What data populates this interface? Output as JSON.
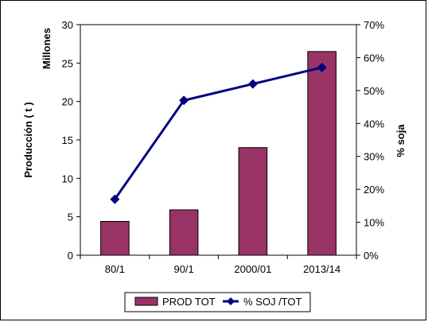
{
  "chart_data": {
    "type": "bar",
    "categories": [
      "80/1",
      "90/1",
      "2000/01",
      "2013/14"
    ],
    "series": [
      {
        "name": "PROD TOT",
        "type": "bar",
        "axis": "left",
        "color": "#993366",
        "values": [
          4.4,
          5.9,
          14.0,
          26.5
        ]
      },
      {
        "name": "% SOJ /TOT",
        "type": "line",
        "axis": "right",
        "color": "#000080",
        "values": [
          17,
          47,
          52,
          57
        ]
      }
    ],
    "y_left": {
      "label": "Producción ( t )",
      "unit_label": "Millones",
      "lim": [
        0,
        30
      ],
      "ticks": [
        "0",
        "5",
        "10",
        "15",
        "20",
        "25",
        "30"
      ]
    },
    "y_right": {
      "label": "% soja",
      "lim": [
        0,
        70
      ],
      "ticks": [
        "0%",
        "10%",
        "20%",
        "30%",
        "40%",
        "50%",
        "60%",
        "70%"
      ]
    },
    "grid": false,
    "legend": "bottom"
  }
}
